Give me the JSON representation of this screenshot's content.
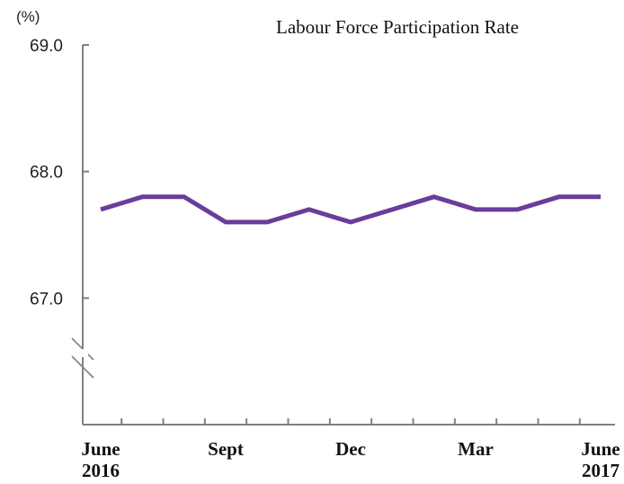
{
  "chart_data": {
    "type": "line",
    "title": "Labour Force Participation Rate",
    "unit": "(%)",
    "x": [
      "2016-06",
      "2016-07",
      "2016-08",
      "2016-09",
      "2016-10",
      "2016-11",
      "2016-12",
      "2017-01",
      "2017-02",
      "2017-03",
      "2017-04",
      "2017-05",
      "2017-06"
    ],
    "x_tick_labels": [
      {
        "index": 0,
        "line1": "June",
        "line2": "2016"
      },
      {
        "index": 3,
        "line1": "Sept",
        "line2": ""
      },
      {
        "index": 6,
        "line1": "Dec",
        "line2": ""
      },
      {
        "index": 9,
        "line1": "Mar",
        "line2": ""
      },
      {
        "index": 12,
        "line1": "June",
        "line2": "2017"
      }
    ],
    "series": [
      {
        "values": [
          67.7,
          67.8,
          67.8,
          67.6,
          67.6,
          67.7,
          67.6,
          67.7,
          67.8,
          67.7,
          67.7,
          67.8,
          67.8
        ],
        "color": "#6a3d9a"
      }
    ],
    "ylim": [
      66.0,
      69.0
    ],
    "y_ticks": [
      "67.0",
      "68.0",
      "69.0"
    ],
    "y_axis_break": true,
    "grid": false
  }
}
